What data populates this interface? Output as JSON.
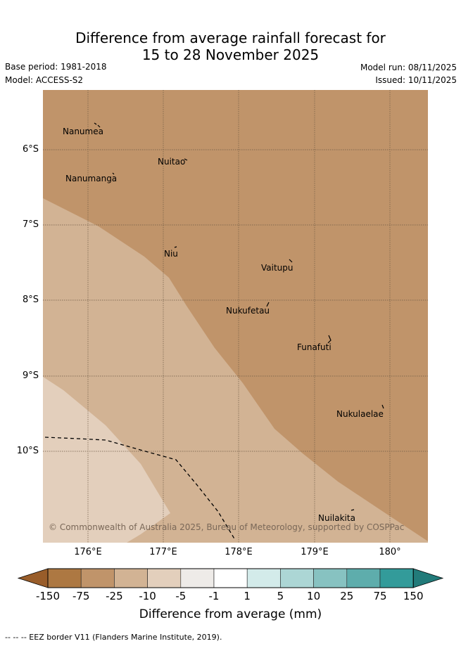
{
  "title": {
    "line1": "Difference from average rainfall forecast for",
    "line2": "15 to 28 November 2025"
  },
  "meta": {
    "base_period": "Base period: 1981-2018",
    "model": "Model: ACCESS-S2",
    "model_run": "Model run: 08/11/2025",
    "issued": "Issued: 10/11/2025"
  },
  "axes": {
    "lat_labels": [
      "6°S",
      "7°S",
      "8°S",
      "9°S",
      "10°S"
    ],
    "lon_labels": [
      "176°E",
      "177°E",
      "178°E",
      "179°E",
      "180°"
    ]
  },
  "islands": [
    {
      "name": "Nanumea"
    },
    {
      "name": "Nuitao"
    },
    {
      "name": "Nanumanga"
    },
    {
      "name": "Niu"
    },
    {
      "name": "Vaitupu"
    },
    {
      "name": "Nukufetau"
    },
    {
      "name": "Funafuti"
    },
    {
      "name": "Nukulaelae"
    },
    {
      "name": "Nuilakita"
    }
  ],
  "copyright": "© Commonwealth of Australia 2025, Bureau of Meteorology, supported by COSPPac",
  "colorbar": {
    "title": "Difference from average (mm)",
    "ticks": [
      "-150",
      "-75",
      "-25",
      "-10",
      "-5",
      "-1",
      "1",
      "5",
      "10",
      "25",
      "75",
      "150"
    ],
    "colors": [
      "#ad7842",
      "#c0946a",
      "#d2b394",
      "#e3cfbc",
      "#eeebe8",
      "#ffffff",
      "#d3ebea",
      "#acd6d5",
      "#87c2c1",
      "#5eadac",
      "#339b9a"
    ],
    "under_color": "#995d2a",
    "over_color": "#227b7a"
  },
  "footnote": "--  --  -- EEZ border V11 (Flanders Marine Institute, 2019)."
}
